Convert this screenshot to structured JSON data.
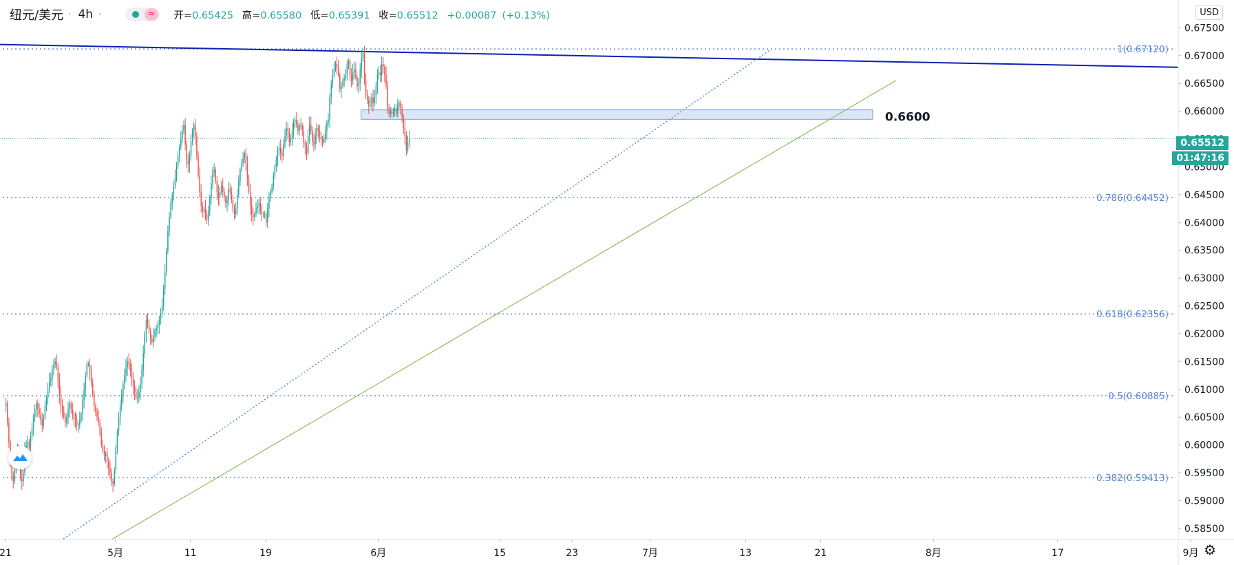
{
  "header": {
    "symbol": "纽元/美元",
    "timeframe": "4h",
    "open_label": "开=",
    "open": "0.65425",
    "high_label": "高=",
    "high": "0.65580",
    "low_label": "低=",
    "low": "0.65391",
    "close_label": "收=",
    "close": "0.65512",
    "change": "+0.00087",
    "change_pct": "(+0.13%)"
  },
  "currency_button": "USD",
  "current_price": "0.65512",
  "countdown": "01:47:16",
  "level_label": "0.6600",
  "colors": {
    "up": "#26a69a",
    "down": "#ef5350",
    "resistance_line": "#0d1fb5",
    "support_line": "#7cb342",
    "fib": "#5b86d6",
    "zone_fill": "#dbe6f7",
    "zone_stroke": "#7a9cd6"
  },
  "icons": {
    "logo": "tradingview-logo-icon",
    "settings": "gear-icon"
  },
  "chart_data": {
    "type": "candlestick",
    "symbol": "纽元/美元",
    "interval": "4h",
    "y_range": [
      0.583,
      0.68
    ],
    "y_ticks": [
      "0.67500",
      "0.67000",
      "0.66500",
      "0.66000",
      "0.65500",
      "0.65000",
      "0.64500",
      "0.64000",
      "0.63500",
      "0.63000",
      "0.62500",
      "0.62000",
      "0.61500",
      "0.61000",
      "0.60500",
      "0.60000",
      "0.59500",
      "0.59000",
      "0.58500"
    ],
    "y_tick_values": [
      0.675,
      0.67,
      0.665,
      0.66,
      0.655,
      0.65,
      0.645,
      0.64,
      0.635,
      0.63,
      0.625,
      0.62,
      0.615,
      0.61,
      0.605,
      0.6,
      0.595,
      0.59,
      0.585
    ],
    "x_ticks": [
      "21",
      "5月",
      "11",
      "19",
      "6月",
      "15",
      "23",
      "7月",
      "13",
      "21",
      "8月",
      "17",
      "9月"
    ],
    "x_tick_bar_index": [
      0,
      76,
      128,
      180,
      258,
      342,
      392,
      446,
      512,
      564,
      642,
      728,
      820
    ],
    "fib_levels": [
      {
        "label": "1(0.67120)",
        "value": 0.6712
      },
      {
        "label": "0.786(0.64452)",
        "value": 0.64452
      },
      {
        "label": "0.618(0.62356)",
        "value": 0.62356
      },
      {
        "label": "0.5(0.60885)",
        "value": 0.60885
      },
      {
        "label": "0.382(0.59413)",
        "value": 0.59413
      }
    ],
    "resistance_zone": [
      0.6588,
      0.66
    ],
    "current_price": 0.65512,
    "closes": [
      0.6075,
      0.604,
      0.6005,
      0.5975,
      0.5945,
      0.5935,
      0.5955,
      0.5965,
      0.599,
      0.597,
      0.594,
      0.5935,
      0.595,
      0.599,
      0.6,
      0.6005,
      0.5995,
      0.6015,
      0.603,
      0.605,
      0.6065,
      0.6075,
      0.6065,
      0.6055,
      0.6045,
      0.6035,
      0.605,
      0.607,
      0.6085,
      0.61,
      0.6115,
      0.612,
      0.6135,
      0.6145,
      0.615,
      0.614,
      0.6115,
      0.609,
      0.607,
      0.606,
      0.605,
      0.604,
      0.605,
      0.6065,
      0.6075,
      0.6065,
      0.6055,
      0.605,
      0.6045,
      0.6035,
      0.6035,
      0.6045,
      0.6055,
      0.608,
      0.61,
      0.6125,
      0.6145,
      0.6145,
      0.613,
      0.611,
      0.609,
      0.607,
      0.606,
      0.605,
      0.604,
      0.602,
      0.6,
      0.599,
      0.598,
      0.5985,
      0.597,
      0.596,
      0.595,
      0.5935,
      0.593,
      0.5955,
      0.5995,
      0.6025,
      0.605,
      0.607,
      0.609,
      0.611,
      0.6125,
      0.614,
      0.615,
      0.6145,
      0.6135,
      0.612,
      0.6105,
      0.6095,
      0.6085,
      0.6085,
      0.6095,
      0.611,
      0.6135,
      0.6165,
      0.62,
      0.6225,
      0.6215,
      0.6205,
      0.619,
      0.6185,
      0.6195,
      0.6205,
      0.621,
      0.6215,
      0.6225,
      0.6235,
      0.625,
      0.628,
      0.631,
      0.635,
      0.6385,
      0.641,
      0.6435,
      0.645,
      0.6465,
      0.648,
      0.65,
      0.652,
      0.6535,
      0.655,
      0.6565,
      0.6575,
      0.654,
      0.651,
      0.6505,
      0.652,
      0.6545,
      0.6565,
      0.6575,
      0.6555,
      0.652,
      0.6485,
      0.6455,
      0.643,
      0.642,
      0.6425,
      0.6415,
      0.6405,
      0.642,
      0.6445,
      0.647,
      0.649,
      0.6495,
      0.6475,
      0.6455,
      0.6445,
      0.6455,
      0.6465,
      0.6455,
      0.6445,
      0.6435,
      0.644,
      0.646,
      0.6455,
      0.644,
      0.6425,
      0.6415,
      0.6425,
      0.645,
      0.6475,
      0.6495,
      0.6505,
      0.6515,
      0.6525,
      0.6505,
      0.648,
      0.6455,
      0.643,
      0.6415,
      0.641,
      0.6415,
      0.6425,
      0.643,
      0.6435,
      0.642,
      0.6415,
      0.6415,
      0.6415,
      0.64,
      0.6425,
      0.6445,
      0.6455,
      0.6465,
      0.6485,
      0.65,
      0.6515,
      0.653,
      0.6535,
      0.6525,
      0.652,
      0.654,
      0.6555,
      0.657,
      0.6565,
      0.6545,
      0.655,
      0.6565,
      0.658,
      0.6585,
      0.6575,
      0.6565,
      0.6575,
      0.6575,
      0.6565,
      0.6545,
      0.6535,
      0.6525,
      0.6555,
      0.6575,
      0.6565,
      0.6545,
      0.654,
      0.6555,
      0.657,
      0.6565,
      0.6555,
      0.655,
      0.6545,
      0.655,
      0.6565,
      0.658,
      0.6585,
      0.6625,
      0.665,
      0.6665,
      0.6675,
      0.6685,
      0.668,
      0.6665,
      0.664,
      0.6645,
      0.6655,
      0.666,
      0.6665,
      0.6685,
      0.669,
      0.6665,
      0.6655,
      0.667,
      0.6675,
      0.666,
      0.6645,
      0.665,
      0.6675,
      0.6695,
      0.6705,
      0.6655,
      0.663,
      0.662,
      0.661,
      0.661,
      0.6625,
      0.6615,
      0.6625,
      0.6645,
      0.6665,
      0.667,
      0.6665,
      0.6685,
      0.668,
      0.6665,
      0.6645,
      0.6605,
      0.6595,
      0.66,
      0.6595,
      0.66,
      0.6605,
      0.6595,
      0.661,
      0.6615,
      0.6605,
      0.659,
      0.657,
      0.6555,
      0.653,
      0.6545,
      0.6551
    ],
    "annotations": [
      "0.6600"
    ]
  }
}
